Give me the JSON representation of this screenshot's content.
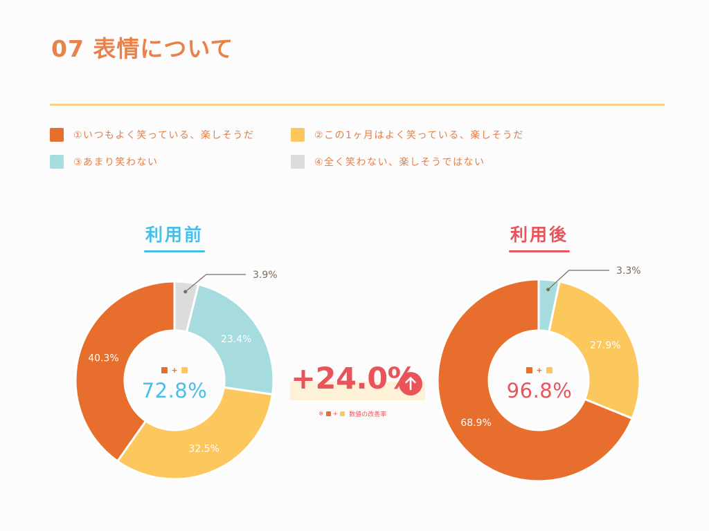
{
  "page": {
    "title": "07 表情について",
    "improvement": {
      "value": "+24.0%",
      "note_prefix": "※",
      "note_plus": "+",
      "note_text": "数値の改善率",
      "arrow_icon": "up-arrow-icon"
    }
  },
  "colors": {
    "c1": "#e86e2d",
    "c2": "#fcc75c",
    "c3": "#a6dcdd",
    "c4": "#dcdcdc",
    "before_accent": "#47bfe6",
    "after_accent": "#e8545a"
  },
  "legend": [
    {
      "label": "①いつもよく笑っている、楽しそうだ",
      "color": "#e86e2d"
    },
    {
      "label": "②この1ヶ月はよく笑っている、楽しそうだ",
      "color": "#fcc75c"
    },
    {
      "label": "③あまり笑わない",
      "color": "#a6dcdd"
    },
    {
      "label": "④全く笑わない、楽しそうではない",
      "color": "#dcdcdc"
    }
  ],
  "chart_data": [
    {
      "type": "pie",
      "title": "利用前",
      "center_plus": "+",
      "center_total": "72.8%",
      "slices": [
        {
          "category": "①いつもよく笑っている、楽しそうだ",
          "value": 40.3,
          "label": "40.3%"
        },
        {
          "category": "②この1ヶ月はよく笑っている、楽しそうだ",
          "value": 32.5,
          "label": "32.5%"
        },
        {
          "category": "③あまり笑わない",
          "value": 23.4,
          "label": "23.4%"
        },
        {
          "category": "④全く笑わない、楽しそうではない",
          "value": 3.9,
          "label": "3.9%"
        }
      ]
    },
    {
      "type": "pie",
      "title": "利用後",
      "center_plus": "+",
      "center_total": "96.8%",
      "slices": [
        {
          "category": "①いつもよく笑っている、楽しそうだ",
          "value": 68.9,
          "label": "68.9%"
        },
        {
          "category": "②この1ヶ月はよく笑っている、楽しそうだ",
          "value": 27.9,
          "label": "27.9%"
        },
        {
          "category": "③あまり笑わない",
          "value": 3.3,
          "label": "3.3%"
        }
      ]
    }
  ]
}
